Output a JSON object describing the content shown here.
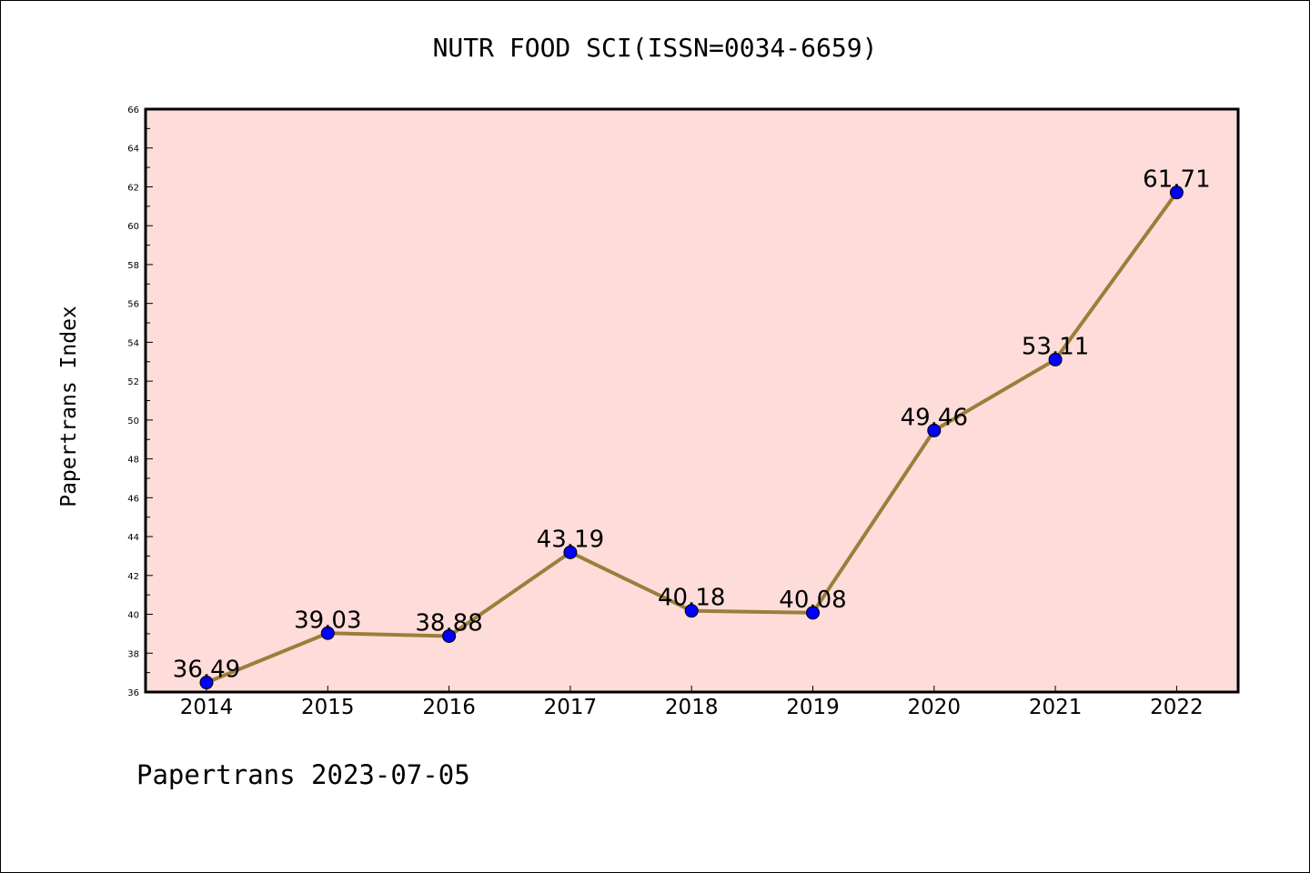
{
  "chart_data": {
    "type": "line",
    "title": "NUTR FOOD SCI(ISSN=0034-6659)",
    "xlabel": "",
    "ylabel": "Papertrans Index",
    "categories": [
      "2014",
      "2015",
      "2016",
      "2017",
      "2018",
      "2019",
      "2020",
      "2021",
      "2022"
    ],
    "series": [
      {
        "values": [
          36.49,
          39.03,
          38.88,
          43.19,
          40.18,
          40.08,
          49.46,
          53.11,
          61.71
        ],
        "labels": [
          "36.49",
          "39.03",
          "38.88",
          "43.19",
          "40.18",
          "40.08",
          "49.46",
          "53.11",
          "61.71"
        ]
      }
    ],
    "ylim": [
      36,
      66
    ],
    "y_ticks": [
      "36",
      "38",
      "40",
      "42",
      "44",
      "46",
      "48",
      "50",
      "52",
      "54",
      "56",
      "58",
      "60",
      "62",
      "64",
      "66"
    ],
    "grid": false,
    "legend": "none",
    "colors": {
      "plot_background": "#fddcd9",
      "line": "#9a7f3c",
      "marker": "#0000ff",
      "axis": "#000000"
    }
  },
  "footer": {
    "note": "Papertrans 2023-07-05"
  }
}
